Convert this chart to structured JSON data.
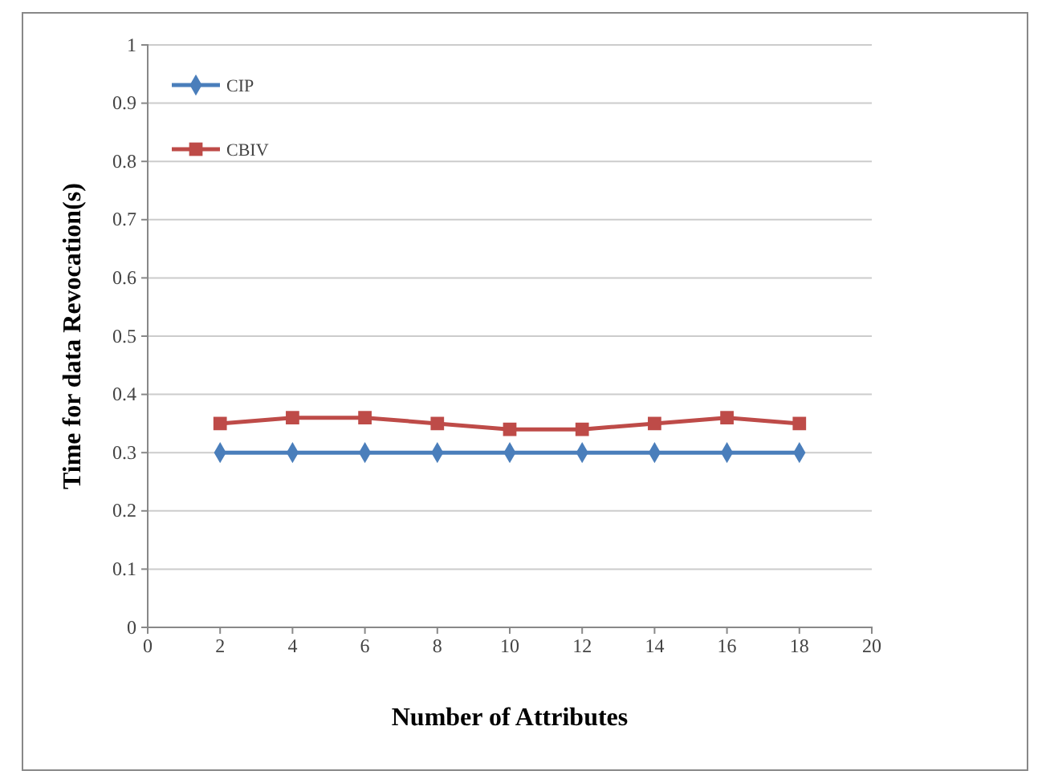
{
  "chart_data": {
    "type": "line",
    "xlabel": "Number of Attributes",
    "ylabel": "Time for data Revocation(s)",
    "x": [
      2,
      4,
      6,
      8,
      10,
      12,
      14,
      16,
      18
    ],
    "series": [
      {
        "name": "CIP",
        "color": "#4a7ebb",
        "marker": "diamond",
        "values": [
          0.3,
          0.3,
          0.3,
          0.3,
          0.3,
          0.3,
          0.3,
          0.3,
          0.3
        ]
      },
      {
        "name": "CBIV",
        "color": "#be4b48",
        "marker": "square",
        "values": [
          0.35,
          0.36,
          0.36,
          0.35,
          0.34,
          0.34,
          0.35,
          0.36,
          0.35
        ]
      }
    ],
    "xlim": [
      0,
      20
    ],
    "xticks": [
      0,
      2,
      4,
      6,
      8,
      10,
      12,
      14,
      16,
      18,
      20
    ],
    "ylim": [
      0,
      1
    ],
    "yticks": [
      0,
      0.1,
      0.2,
      0.3,
      0.4,
      0.5,
      0.6,
      0.7,
      0.8,
      0.9,
      1
    ],
    "grid": "y",
    "legend": "top left"
  }
}
